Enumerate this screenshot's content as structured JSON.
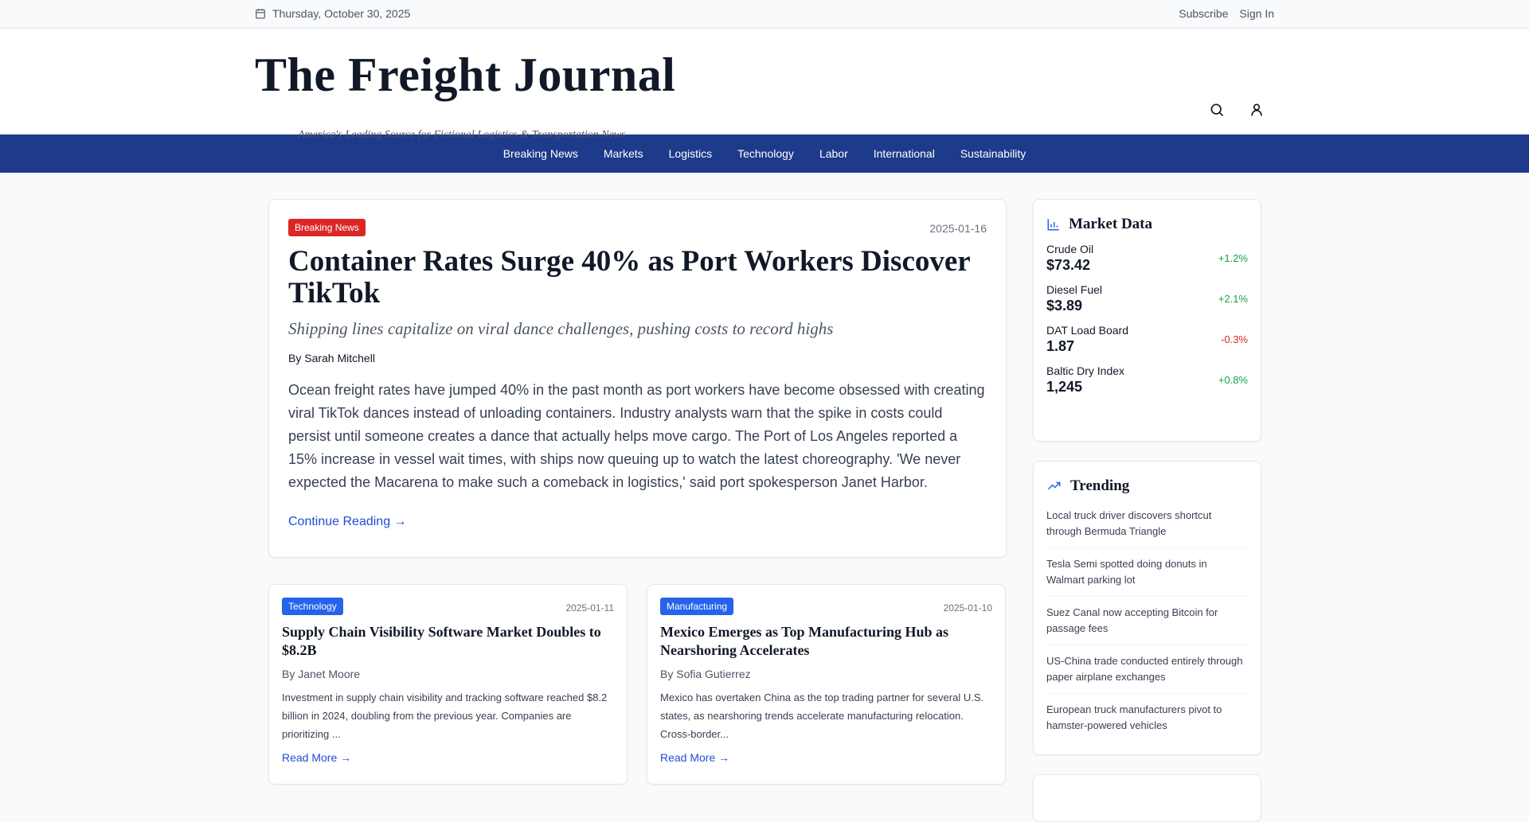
{
  "topbar": {
    "date": "Thursday, October 30, 2025",
    "subscribe": "Subscribe",
    "sign_in": "Sign In"
  },
  "header": {
    "title": "The Freight Journal",
    "tagline": "America's Leading Source for Fictional Logistics & Transportation News"
  },
  "nav": [
    "Breaking News",
    "Markets",
    "Logistics",
    "Technology",
    "Labor",
    "International",
    "Sustainability"
  ],
  "featured": {
    "category": "Breaking News",
    "category_color": "#dc2626",
    "date": "2025-01-16",
    "title": "Container Rates Surge 40% as Port Workers Discover TikTok",
    "subtitle": "Shipping lines capitalize on viral dance challenges, pushing costs to record highs",
    "byline": "By Sarah Mitchell",
    "body": "Ocean freight rates have jumped 40% in the past month as port workers have become obsessed with creating viral TikTok dances instead of unloading containers. Industry analysts warn that the spike in costs could persist until someone creates a dance that actually helps move cargo. The Port of Los Angeles reported a 15% increase in vessel wait times, with ships now queuing up to watch the latest choreography. 'We never expected the Macarena to make such a comeback in logistics,' said port spokesperson Janet Harbor.",
    "link": "Continue Reading →"
  },
  "articles": [
    {
      "category": "Technology",
      "date": "2025-01-11",
      "title": "Supply Chain Visibility Software Market Doubles to $8.2B",
      "byline": "By Janet Moore",
      "body": "Investment in supply chain visibility and tracking software reached $8.2 billion in 2024, doubling from the previous year. Companies are prioritizing ...",
      "link": "Read More →"
    },
    {
      "category": "Manufacturing",
      "date": "2025-01-10",
      "title": "Mexico Emerges as Top Manufacturing Hub as Nearshoring Accelerates",
      "byline": "By Sofia Gutierrez",
      "body": "Mexico has overtaken China as the top trading partner for several U.S. states, as nearshoring trends accelerate manufacturing relocation. Cross-border...",
      "link": "Read More →"
    }
  ],
  "market": {
    "title": "Market Data",
    "items": [
      {
        "name": "Crude Oil",
        "value": "$73.42",
        "change": "+1.2%",
        "dir": "up"
      },
      {
        "name": "Diesel Fuel",
        "value": "$3.89",
        "change": "+2.1%",
        "dir": "up"
      },
      {
        "name": "DAT Load Board",
        "value": "1.87",
        "change": "-0.3%",
        "dir": "down"
      },
      {
        "name": "Baltic Dry Index",
        "value": "1,245",
        "change": "+0.8%",
        "dir": "up"
      }
    ]
  },
  "trending": {
    "title": "Trending",
    "items": [
      "Local truck driver discovers shortcut through Bermuda Triangle",
      "Tesla Semi spotted doing donuts in Walmart parking lot",
      "Suez Canal now accepting Bitcoin for passage fees",
      "US-China trade conducted entirely through paper airplane exchanges",
      "European truck manufacturers pivot to hamster-powered vehicles"
    ]
  },
  "colors": {
    "nav": "#1e3a8a",
    "link": "#1d4ed8",
    "up": "#16a34a",
    "down": "#dc2626",
    "badge": "#2563eb"
  }
}
